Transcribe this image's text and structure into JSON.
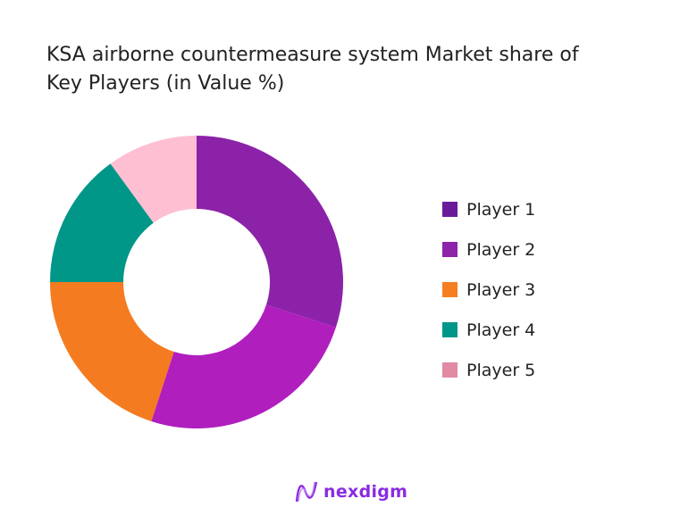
{
  "chart_data": {
    "type": "donut",
    "title": "KSA airborne countermeasure system Market share of Key Players (in Value %)",
    "categories": [
      "Player 1",
      "Player 2",
      "Player 3",
      "Player 4",
      "Player 5"
    ],
    "values": [
      30,
      25,
      20,
      15,
      10
    ],
    "unit": "%",
    "slice_colors": [
      "#8B22A8",
      "#B01EBE",
      "#F47B20",
      "#009688",
      "#FFBFD3"
    ],
    "legend_colors": [
      "#6A1B9A",
      "#8E24AA",
      "#F57F20",
      "#009688",
      "#E08AA4"
    ],
    "legend_position": "right"
  },
  "logo": {
    "text": "nexdigm"
  }
}
